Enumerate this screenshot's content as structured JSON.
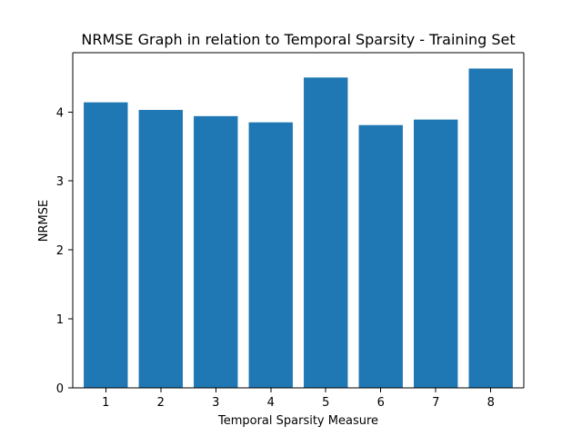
{
  "chart_data": {
    "type": "bar",
    "title": "NRMSE Graph in relation to Temporal Sparsity - Training Set",
    "xlabel": "Temporal Sparsity Measure",
    "ylabel": "NRMSE",
    "categories": [
      "1",
      "2",
      "3",
      "4",
      "5",
      "6",
      "7",
      "8"
    ],
    "values": [
      4.14,
      4.03,
      3.94,
      3.85,
      4.5,
      3.81,
      3.89,
      4.63
    ],
    "yticks": [
      0,
      1,
      2,
      3,
      4
    ],
    "ylim": [
      0,
      4.86
    ],
    "grid": false,
    "legend": "none",
    "bar_color": "#1f77b4"
  }
}
